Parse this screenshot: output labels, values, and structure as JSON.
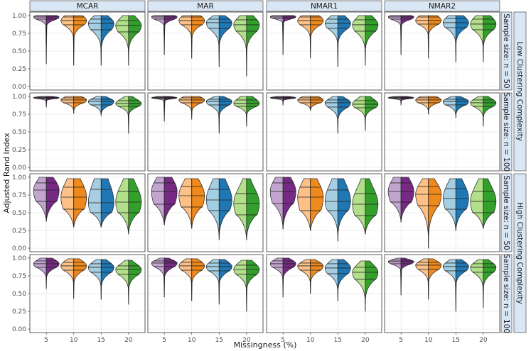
{
  "chart_data": {
    "type": "violin",
    "xlabel": "Missingness (%)",
    "ylabel": "Adjusted Rand Index",
    "ylim": [
      0,
      1
    ],
    "yticks": [
      "0.00",
      "0.25",
      "0.50",
      "0.75",
      "1.00"
    ],
    "categories": [
      "5",
      "10",
      "15",
      "20"
    ],
    "colors": {
      "5": [
        "#c2a5cf",
        "#762a83"
      ],
      "10": [
        "#fdc086",
        "#f0891b"
      ],
      "15": [
        "#a6cee3",
        "#1f78b4"
      ],
      "20": [
        "#b2df8a",
        "#33a02c"
      ]
    },
    "columns": [
      "MCAR",
      "MAR",
      "NMAR1",
      "NMAR2"
    ],
    "row_labels": [
      "Sample size: n = 50",
      "Sample size: n = 100",
      "Sample size: n = 50",
      "Sample size: n = 100"
    ],
    "outer_labels": [
      "Low Clustering Complexity",
      "High Clustering Complexity"
    ],
    "panels": [
      [
        [
          {
            "min": 0.32,
            "q1": 0.95,
            "med": 0.98,
            "q3": 1.0,
            "max": 1.0
          },
          {
            "min": 0.3,
            "q1": 0.87,
            "med": 0.93,
            "q3": 0.98,
            "max": 1.0
          },
          {
            "min": 0.3,
            "q1": 0.8,
            "med": 0.89,
            "q3": 0.95,
            "max": 1.0
          },
          {
            "min": 0.3,
            "q1": 0.77,
            "med": 0.86,
            "q3": 0.93,
            "max": 1.0
          }
        ],
        [
          {
            "min": 0.45,
            "q1": 0.95,
            "med": 0.98,
            "q3": 1.0,
            "max": 1.0
          },
          {
            "min": 0.4,
            "q1": 0.87,
            "med": 0.93,
            "q3": 0.98,
            "max": 1.0
          },
          {
            "min": 0.28,
            "q1": 0.82,
            "med": 0.9,
            "q3": 0.95,
            "max": 1.0
          },
          {
            "min": 0.15,
            "q1": 0.78,
            "med": 0.87,
            "q3": 0.94,
            "max": 1.0
          }
        ],
        [
          {
            "min": 0.45,
            "q1": 0.96,
            "med": 0.98,
            "q3": 1.0,
            "max": 1.0
          },
          {
            "min": 0.4,
            "q1": 0.87,
            "med": 0.93,
            "q3": 0.98,
            "max": 1.0
          },
          {
            "min": 0.28,
            "q1": 0.82,
            "med": 0.89,
            "q3": 0.95,
            "max": 1.0
          },
          {
            "min": 0.3,
            "q1": 0.78,
            "med": 0.87,
            "q3": 0.94,
            "max": 1.0
          }
        ],
        [
          {
            "min": 0.45,
            "q1": 0.95,
            "med": 0.98,
            "q3": 1.0,
            "max": 1.0
          },
          {
            "min": 0.4,
            "q1": 0.88,
            "med": 0.93,
            "q3": 0.98,
            "max": 1.0
          },
          {
            "min": 0.35,
            "q1": 0.83,
            "med": 0.9,
            "q3": 0.96,
            "max": 1.0
          },
          {
            "min": 0.35,
            "q1": 0.8,
            "med": 0.88,
            "q3": 0.95,
            "max": 1.0
          }
        ]
      ],
      [
        [
          {
            "min": 0.85,
            "q1": 0.97,
            "med": 0.98,
            "q3": 0.99,
            "max": 1.0
          },
          {
            "min": 0.76,
            "q1": 0.91,
            "med": 0.95,
            "q3": 0.98,
            "max": 1.0
          },
          {
            "min": 0.73,
            "q1": 0.88,
            "med": 0.93,
            "q3": 0.96,
            "max": 1.0
          },
          {
            "min": 0.48,
            "q1": 0.86,
            "med": 0.9,
            "q3": 0.94,
            "max": 1.0
          }
        ],
        [
          {
            "min": 0.65,
            "q1": 0.97,
            "med": 0.98,
            "q3": 0.99,
            "max": 1.0
          },
          {
            "min": 0.68,
            "q1": 0.91,
            "med": 0.95,
            "q3": 0.98,
            "max": 1.0
          },
          {
            "min": 0.48,
            "q1": 0.88,
            "med": 0.93,
            "q3": 0.96,
            "max": 1.0
          },
          {
            "min": 0.58,
            "q1": 0.86,
            "med": 0.9,
            "q3": 0.95,
            "max": 1.0
          }
        ],
        [
          {
            "min": 0.88,
            "q1": 0.97,
            "med": 0.98,
            "q3": 0.99,
            "max": 1.0
          },
          {
            "min": 0.8,
            "q1": 0.91,
            "med": 0.95,
            "q3": 0.98,
            "max": 1.0
          },
          {
            "min": 0.48,
            "q1": 0.85,
            "med": 0.91,
            "q3": 0.95,
            "max": 1.0
          },
          {
            "min": 0.52,
            "q1": 0.84,
            "med": 0.89,
            "q3": 0.94,
            "max": 1.0
          }
        ],
        [
          {
            "min": 0.88,
            "q1": 0.97,
            "med": 0.98,
            "q3": 0.99,
            "max": 1.0
          },
          {
            "min": 0.75,
            "q1": 0.91,
            "med": 0.95,
            "q3": 0.98,
            "max": 1.0
          },
          {
            "min": 0.7,
            "q1": 0.88,
            "med": 0.93,
            "q3": 0.96,
            "max": 1.0
          },
          {
            "min": 0.58,
            "q1": 0.86,
            "med": 0.91,
            "q3": 0.95,
            "max": 1.0
          }
        ]
      ],
      [
        [
          {
            "min": 0.38,
            "q1": 0.66,
            "med": 0.82,
            "q3": 0.92,
            "max": 1.0
          },
          {
            "min": 0.3,
            "q1": 0.55,
            "med": 0.72,
            "q3": 0.86,
            "max": 0.98
          },
          {
            "min": 0.3,
            "q1": 0.5,
            "med": 0.64,
            "q3": 0.83,
            "max": 0.98
          },
          {
            "min": 0.2,
            "q1": 0.5,
            "med": 0.65,
            "q3": 0.8,
            "max": 0.98
          }
        ],
        [
          {
            "min": 0.33,
            "q1": 0.62,
            "med": 0.8,
            "q3": 0.92,
            "max": 1.0
          },
          {
            "min": 0.28,
            "q1": 0.58,
            "med": 0.74,
            "q3": 0.87,
            "max": 0.98
          },
          {
            "min": 0.12,
            "q1": 0.53,
            "med": 0.68,
            "q3": 0.83,
            "max": 0.98
          },
          {
            "min": 0.12,
            "q1": 0.47,
            "med": 0.63,
            "q3": 0.77,
            "max": 0.98
          }
        ],
        [
          {
            "min": 0.27,
            "q1": 0.63,
            "med": 0.8,
            "q3": 0.92,
            "max": 1.0
          },
          {
            "min": 0.25,
            "q1": 0.53,
            "med": 0.72,
            "q3": 0.86,
            "max": 0.98
          },
          {
            "min": 0.1,
            "q1": 0.53,
            "med": 0.66,
            "q3": 0.82,
            "max": 0.98
          },
          {
            "min": 0.2,
            "q1": 0.46,
            "med": 0.62,
            "q3": 0.77,
            "max": 0.98
          }
        ],
        [
          {
            "min": 0.37,
            "q1": 0.65,
            "med": 0.8,
            "q3": 0.92,
            "max": 1.0
          },
          {
            "min": 0.0,
            "q1": 0.6,
            "med": 0.76,
            "q3": 0.87,
            "max": 0.98
          },
          {
            "min": 0.25,
            "q1": 0.55,
            "med": 0.7,
            "q3": 0.84,
            "max": 0.98
          },
          {
            "min": 0.28,
            "q1": 0.5,
            "med": 0.66,
            "q3": 0.8,
            "max": 0.98
          }
        ]
      ],
      [
        [
          {
            "min": 0.57,
            "q1": 0.87,
            "med": 0.92,
            "q3": 0.96,
            "max": 1.0
          },
          {
            "min": 0.43,
            "q1": 0.83,
            "med": 0.89,
            "q3": 0.94,
            "max": 0.99
          },
          {
            "min": 0.42,
            "q1": 0.8,
            "med": 0.87,
            "q3": 0.92,
            "max": 0.98
          },
          {
            "min": 0.35,
            "q1": 0.77,
            "med": 0.84,
            "q3": 0.89,
            "max": 0.97
          }
        ],
        [
          {
            "min": 0.45,
            "q1": 0.88,
            "med": 0.93,
            "q3": 0.96,
            "max": 1.0
          },
          {
            "min": 0.4,
            "q1": 0.83,
            "med": 0.89,
            "q3": 0.94,
            "max": 0.99
          },
          {
            "min": 0.35,
            "q1": 0.82,
            "med": 0.88,
            "q3": 0.93,
            "max": 0.98
          },
          {
            "min": 0.25,
            "q1": 0.77,
            "med": 0.84,
            "q3": 0.9,
            "max": 0.97
          }
        ],
        [
          {
            "min": 0.45,
            "q1": 0.87,
            "med": 0.92,
            "q3": 0.96,
            "max": 1.0
          },
          {
            "min": 0.5,
            "q1": 0.83,
            "med": 0.89,
            "q3": 0.93,
            "max": 0.98
          },
          {
            "min": 0.4,
            "q1": 0.78,
            "med": 0.86,
            "q3": 0.92,
            "max": 0.98
          },
          {
            "min": 0.25,
            "q1": 0.7,
            "med": 0.8,
            "q3": 0.87,
            "max": 0.96
          }
        ],
        [
          {
            "min": 0.48,
            "q1": 0.92,
            "med": 0.95,
            "q3": 0.97,
            "max": 1.0
          },
          {
            "min": 0.42,
            "q1": 0.84,
            "med": 0.9,
            "q3": 0.94,
            "max": 0.99
          },
          {
            "min": 0.25,
            "q1": 0.82,
            "med": 0.88,
            "q3": 0.93,
            "max": 0.98
          },
          {
            "min": 0.3,
            "q1": 0.8,
            "med": 0.87,
            "q3": 0.92,
            "max": 0.98
          }
        ]
      ]
    ]
  }
}
